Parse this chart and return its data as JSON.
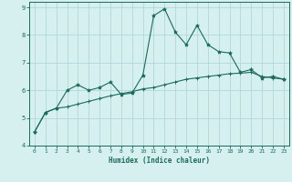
{
  "xlabel": "Humidex (Indice chaleur)",
  "x": [
    0,
    1,
    2,
    3,
    4,
    5,
    6,
    7,
    8,
    9,
    10,
    11,
    12,
    13,
    14,
    15,
    16,
    17,
    18,
    19,
    20,
    21,
    22,
    23
  ],
  "line1_y": [
    4.5,
    5.2,
    5.35,
    6.0,
    6.2,
    6.0,
    6.1,
    6.3,
    5.85,
    5.9,
    6.55,
    8.7,
    8.95,
    8.1,
    7.65,
    8.35,
    7.65,
    7.4,
    7.35,
    6.65,
    6.75,
    6.45,
    6.5,
    6.4
  ],
  "line2_y": [
    4.5,
    5.2,
    5.35,
    5.4,
    5.5,
    5.6,
    5.7,
    5.8,
    5.88,
    5.95,
    6.05,
    6.1,
    6.2,
    6.3,
    6.4,
    6.45,
    6.5,
    6.55,
    6.6,
    6.62,
    6.65,
    6.5,
    6.45,
    6.4
  ],
  "color": "#1a6b5a",
  "bg_color": "#d6f0f0",
  "grid_color": "#b0d8d8",
  "ylim": [
    4.0,
    9.2
  ],
  "xlim": [
    -0.5,
    23.5
  ],
  "yticks": [
    4,
    5,
    6,
    7,
    8,
    9
  ],
  "xticks": [
    0,
    1,
    2,
    3,
    4,
    5,
    6,
    7,
    8,
    9,
    10,
    11,
    12,
    13,
    14,
    15,
    16,
    17,
    18,
    19,
    20,
    21,
    22,
    23
  ],
  "xtick_labels": [
    "0",
    "1",
    "2",
    "3",
    "4",
    "5",
    "6",
    "7",
    "8",
    "9",
    "10",
    "11",
    "12",
    "13",
    "14",
    "15",
    "16",
    "17",
    "18",
    "19",
    "20",
    "21",
    "22",
    "23"
  ]
}
